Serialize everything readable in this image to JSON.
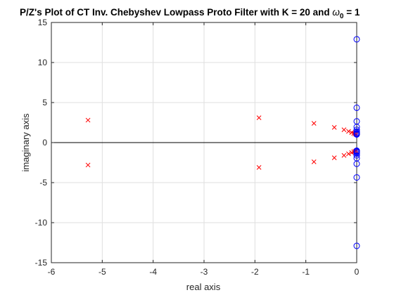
{
  "chart_data": {
    "type": "scatter",
    "title_prefix": "P/Z's Plot of CT Inv. Chebyshev Lowpass Proto Filter with K = 20 and ",
    "title_omega": "ω",
    "title_sub": "0",
    "title_suffix": " = 1",
    "xlabel": "real axis",
    "ylabel": "imaginary axis",
    "xlim": [
      -6,
      0
    ],
    "ylim": [
      -15,
      15
    ],
    "xticks": [
      -6,
      -5,
      -4,
      -3,
      -2,
      -1,
      0
    ],
    "yticks": [
      -15,
      -10,
      -5,
      0,
      5,
      10,
      15
    ],
    "grid": true,
    "colors": {
      "poles": "#ff0000",
      "zeros": "#0000ff",
      "grid": "#dfdfdf"
    },
    "series": [
      {
        "marker": "x",
        "points": [
          [
            -5.28,
            2.8
          ],
          [
            -5.28,
            -2.8
          ],
          [
            -1.92,
            3.1
          ],
          [
            -1.92,
            -3.1
          ],
          [
            -0.84,
            2.4
          ],
          [
            -0.84,
            -2.4
          ],
          [
            -0.44,
            1.9
          ],
          [
            -0.44,
            -1.9
          ],
          [
            -0.25,
            1.6
          ],
          [
            -0.25,
            -1.6
          ],
          [
            -0.16,
            1.4
          ],
          [
            -0.16,
            -1.4
          ],
          [
            -0.1,
            1.25
          ],
          [
            -0.1,
            -1.25
          ],
          [
            -0.06,
            1.15
          ],
          [
            -0.06,
            -1.15
          ],
          [
            -0.035,
            1.08
          ],
          [
            -0.035,
            -1.08
          ],
          [
            -0.012,
            1.03
          ],
          [
            -0.012,
            -1.03
          ]
        ]
      },
      {
        "marker": "o",
        "points": [
          [
            0,
            12.9
          ],
          [
            0,
            -12.9
          ],
          [
            0,
            4.35
          ],
          [
            0,
            -4.35
          ],
          [
            0,
            2.65
          ],
          [
            0,
            -2.65
          ],
          [
            0,
            1.95
          ],
          [
            0,
            -1.95
          ],
          [
            0,
            1.6
          ],
          [
            0,
            -1.6
          ],
          [
            0,
            1.38
          ],
          [
            0,
            -1.38
          ],
          [
            0,
            1.22
          ],
          [
            0,
            -1.22
          ],
          [
            0,
            1.12
          ],
          [
            0,
            -1.12
          ],
          [
            0,
            1.05
          ],
          [
            0,
            -1.05
          ],
          [
            0,
            1.01
          ],
          [
            0,
            -1.01
          ]
        ]
      }
    ]
  }
}
